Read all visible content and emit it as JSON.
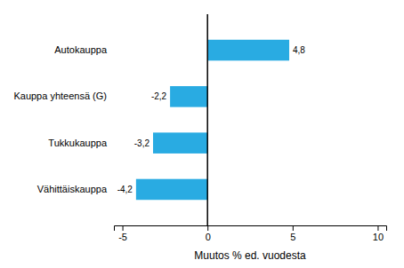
{
  "chart_data": {
    "type": "bar",
    "orientation": "horizontal",
    "categories": [
      "Autokauppa",
      "Kauppa yhteensä (G)",
      "Tukkukauppa",
      "Vähittäiskauppa"
    ],
    "values": [
      4.8,
      -2.2,
      -3.2,
      -4.2
    ],
    "value_labels": [
      "4,8",
      "-2,2",
      "-3,2",
      "-4,2"
    ],
    "data_labels": true,
    "color": "#29ABE2",
    "xlabel": "Muutos % ed. vuodesta",
    "xlim": [
      -5.5,
      10.5
    ],
    "xticks": [
      -5,
      0,
      5,
      10
    ],
    "grid": false
  }
}
